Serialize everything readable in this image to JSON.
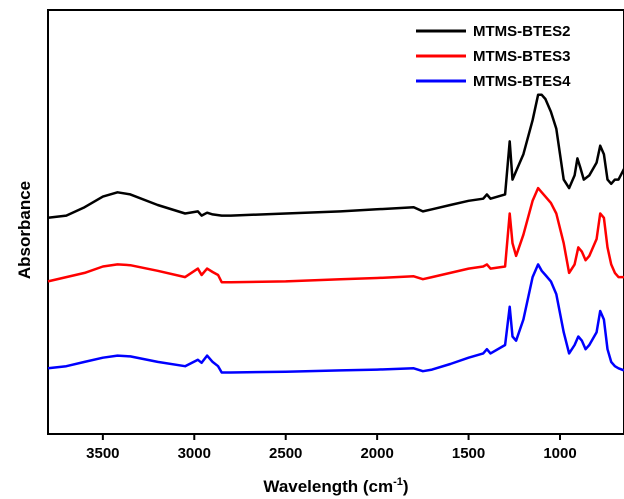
{
  "chart_data": {
    "type": "line",
    "xlabel": "Wavelength (cm",
    "xlabel_sup": "-1",
    "xlabel_close": ")",
    "ylabel": "Absorbance",
    "xlim": [
      3800,
      650
    ],
    "ylim": [
      0,
      1
    ],
    "x_reversed": true,
    "y_ticks_shown": false,
    "grid": false,
    "legend_position": "top-right",
    "x_ticks": [
      3500,
      3000,
      2500,
      2000,
      1500,
      1000
    ],
    "x_tick_labels": [
      "3500",
      "3000",
      "2500",
      "2000",
      "1500",
      "1000"
    ],
    "series": [
      {
        "name": "MTMS-BTES2",
        "color": "#000000",
        "points": [
          [
            3800,
            0.51
          ],
          [
            3700,
            0.515
          ],
          [
            3600,
            0.535
          ],
          [
            3500,
            0.56
          ],
          [
            3420,
            0.57
          ],
          [
            3350,
            0.565
          ],
          [
            3200,
            0.54
          ],
          [
            3050,
            0.52
          ],
          [
            2980,
            0.525
          ],
          [
            2960,
            0.515
          ],
          [
            2930,
            0.522
          ],
          [
            2900,
            0.518
          ],
          [
            2850,
            0.515
          ],
          [
            2800,
            0.515
          ],
          [
            2500,
            0.52
          ],
          [
            2200,
            0.525
          ],
          [
            2000,
            0.53
          ],
          [
            1800,
            0.535
          ],
          [
            1750,
            0.525
          ],
          [
            1700,
            0.53
          ],
          [
            1600,
            0.54
          ],
          [
            1500,
            0.55
          ],
          [
            1420,
            0.555
          ],
          [
            1400,
            0.565
          ],
          [
            1380,
            0.555
          ],
          [
            1300,
            0.565
          ],
          [
            1275,
            0.69
          ],
          [
            1260,
            0.6
          ],
          [
            1240,
            0.62
          ],
          [
            1200,
            0.66
          ],
          [
            1150,
            0.74
          ],
          [
            1120,
            0.8
          ],
          [
            1100,
            0.8
          ],
          [
            1080,
            0.79
          ],
          [
            1050,
            0.76
          ],
          [
            1020,
            0.72
          ],
          [
            980,
            0.6
          ],
          [
            950,
            0.58
          ],
          [
            920,
            0.61
          ],
          [
            905,
            0.65
          ],
          [
            890,
            0.63
          ],
          [
            870,
            0.6
          ],
          [
            840,
            0.61
          ],
          [
            800,
            0.64
          ],
          [
            780,
            0.68
          ],
          [
            760,
            0.66
          ],
          [
            740,
            0.6
          ],
          [
            720,
            0.59
          ],
          [
            700,
            0.6
          ],
          [
            680,
            0.6
          ],
          [
            650,
            0.625
          ]
        ]
      },
      {
        "name": "MTMS-BTES3",
        "color": "#ff0000",
        "points": [
          [
            3800,
            0.36
          ],
          [
            3700,
            0.37
          ],
          [
            3600,
            0.38
          ],
          [
            3500,
            0.395
          ],
          [
            3420,
            0.4
          ],
          [
            3350,
            0.398
          ],
          [
            3200,
            0.385
          ],
          [
            3050,
            0.37
          ],
          [
            2980,
            0.39
          ],
          [
            2960,
            0.375
          ],
          [
            2930,
            0.39
          ],
          [
            2900,
            0.382
          ],
          [
            2870,
            0.375
          ],
          [
            2850,
            0.358
          ],
          [
            2800,
            0.358
          ],
          [
            2500,
            0.36
          ],
          [
            2200,
            0.365
          ],
          [
            2000,
            0.368
          ],
          [
            1800,
            0.372
          ],
          [
            1750,
            0.365
          ],
          [
            1700,
            0.37
          ],
          [
            1600,
            0.38
          ],
          [
            1500,
            0.39
          ],
          [
            1420,
            0.395
          ],
          [
            1400,
            0.4
          ],
          [
            1380,
            0.39
          ],
          [
            1300,
            0.395
          ],
          [
            1275,
            0.52
          ],
          [
            1260,
            0.45
          ],
          [
            1240,
            0.42
          ],
          [
            1200,
            0.47
          ],
          [
            1150,
            0.55
          ],
          [
            1120,
            0.58
          ],
          [
            1100,
            0.57
          ],
          [
            1080,
            0.56
          ],
          [
            1050,
            0.545
          ],
          [
            1020,
            0.52
          ],
          [
            980,
            0.45
          ],
          [
            950,
            0.38
          ],
          [
            920,
            0.4
          ],
          [
            900,
            0.44
          ],
          [
            880,
            0.43
          ],
          [
            860,
            0.41
          ],
          [
            840,
            0.42
          ],
          [
            800,
            0.46
          ],
          [
            780,
            0.52
          ],
          [
            760,
            0.51
          ],
          [
            740,
            0.44
          ],
          [
            720,
            0.4
          ],
          [
            700,
            0.38
          ],
          [
            680,
            0.37
          ],
          [
            650,
            0.37
          ]
        ]
      },
      {
        "name": "MTMS-BTES4",
        "color": "#0000ff",
        "points": [
          [
            3800,
            0.155
          ],
          [
            3700,
            0.16
          ],
          [
            3600,
            0.17
          ],
          [
            3500,
            0.18
          ],
          [
            3420,
            0.185
          ],
          [
            3350,
            0.183
          ],
          [
            3200,
            0.17
          ],
          [
            3050,
            0.16
          ],
          [
            2980,
            0.175
          ],
          [
            2960,
            0.168
          ],
          [
            2930,
            0.185
          ],
          [
            2900,
            0.17
          ],
          [
            2870,
            0.16
          ],
          [
            2850,
            0.145
          ],
          [
            2800,
            0.145
          ],
          [
            2500,
            0.147
          ],
          [
            2200,
            0.15
          ],
          [
            2000,
            0.152
          ],
          [
            1800,
            0.155
          ],
          [
            1750,
            0.148
          ],
          [
            1700,
            0.152
          ],
          [
            1600,
            0.165
          ],
          [
            1500,
            0.18
          ],
          [
            1420,
            0.19
          ],
          [
            1400,
            0.2
          ],
          [
            1380,
            0.19
          ],
          [
            1300,
            0.21
          ],
          [
            1275,
            0.3
          ],
          [
            1260,
            0.23
          ],
          [
            1240,
            0.22
          ],
          [
            1200,
            0.27
          ],
          [
            1150,
            0.37
          ],
          [
            1120,
            0.4
          ],
          [
            1100,
            0.385
          ],
          [
            1080,
            0.375
          ],
          [
            1050,
            0.36
          ],
          [
            1020,
            0.33
          ],
          [
            980,
            0.24
          ],
          [
            950,
            0.19
          ],
          [
            920,
            0.21
          ],
          [
            900,
            0.23
          ],
          [
            880,
            0.22
          ],
          [
            860,
            0.2
          ],
          [
            840,
            0.21
          ],
          [
            800,
            0.24
          ],
          [
            780,
            0.29
          ],
          [
            760,
            0.27
          ],
          [
            740,
            0.2
          ],
          [
            720,
            0.17
          ],
          [
            700,
            0.16
          ],
          [
            680,
            0.155
          ],
          [
            650,
            0.15
          ]
        ]
      }
    ]
  }
}
